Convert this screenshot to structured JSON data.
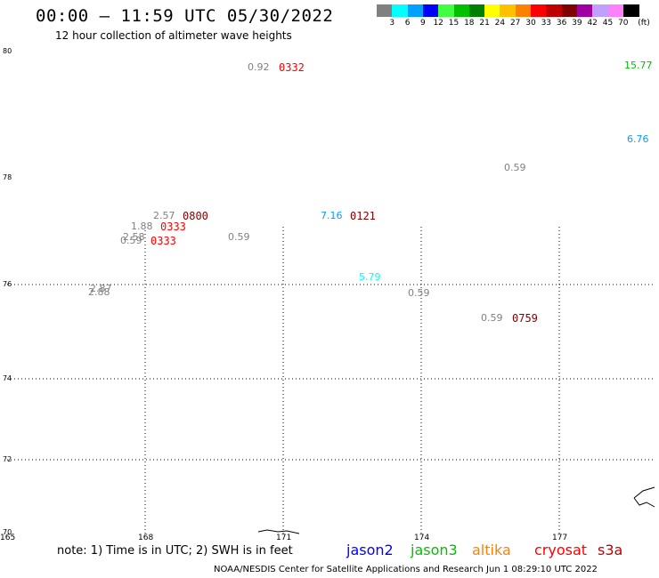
{
  "header": {
    "title": "00:00 – 11:59 UTC 05/30/2022",
    "subtitle": "12 hour collection of altimeter wave heights"
  },
  "colorbar": {
    "unit_label": "(ft)",
    "entries": [
      {
        "label": "3",
        "color": "#808080"
      },
      {
        "label": "6",
        "color": "#00ffff"
      },
      {
        "label": "9",
        "color": "#00a0ff"
      },
      {
        "label": "12",
        "color": "#0000ff"
      },
      {
        "label": "15",
        "color": "#40ff40"
      },
      {
        "label": "18",
        "color": "#00c000"
      },
      {
        "label": "21",
        "color": "#008000"
      },
      {
        "label": "24",
        "color": "#ffff00"
      },
      {
        "label": "27",
        "color": "#ffc000"
      },
      {
        "label": "30",
        "color": "#ff8000"
      },
      {
        "label": "33",
        "color": "#ff0000"
      },
      {
        "label": "36",
        "color": "#c00000"
      },
      {
        "label": "39",
        "color": "#800000"
      },
      {
        "label": "42",
        "color": "#a000a0"
      },
      {
        "label": "45",
        "color": "#c0a0ff"
      },
      {
        "label": "70",
        "color": "#ff80ff"
      },
      {
        "label": "",
        "color": "#000000"
      }
    ]
  },
  "axes": {
    "lat_labels": [
      "80",
      "78",
      "76",
      "74",
      "72",
      "70"
    ],
    "lon_labels": [
      "165",
      "168",
      "171",
      "174",
      "177"
    ]
  },
  "observations": [
    {
      "text": "0.92",
      "color": "#808080"
    },
    {
      "text": "0332",
      "color": "#ff0000"
    },
    {
      "text": "15.77",
      "color": "#00c000"
    },
    {
      "text": "6.76",
      "color": "#00a0ff"
    },
    {
      "text": "0.59",
      "color": "#808080"
    },
    {
      "text": "2.57",
      "color": "#808080"
    },
    {
      "text": "0800",
      "color": "#800000"
    },
    {
      "text": "7.16",
      "color": "#00a0ff"
    },
    {
      "text": "0121",
      "color": "#800000"
    },
    {
      "text": "1.88",
      "color": "#808080"
    },
    {
      "text": "0333",
      "color": "#ff0000"
    },
    {
      "text": "2.58",
      "color": "#808080"
    },
    {
      "text": "0.59",
      "color": "#808080"
    },
    {
      "text": "0333",
      "color": "#ff0000"
    },
    {
      "text": "0.59",
      "color": "#808080"
    },
    {
      "text": "5.79",
      "color": "#00ffff"
    },
    {
      "text": "2.87",
      "color": "#808080"
    },
    {
      "text": "2.88",
      "color": "#808080"
    },
    {
      "text": "0.59",
      "color": "#808080"
    },
    {
      "text": "0.59",
      "color": "#808080"
    },
    {
      "text": "0759",
      "color": "#800000"
    }
  ],
  "footer": {
    "note": "note: 1) Time is in UTC; 2) SWH is in feet",
    "satellites": [
      {
        "name": "jason2",
        "color": "#0000ff"
      },
      {
        "name": "jason3",
        "color": "#00c000"
      },
      {
        "name": "altika",
        "color": "#ff8000"
      },
      {
        "name": "cryosat",
        "color": "#ff0000"
      },
      {
        "name": "s3a",
        "color": "#c00000"
      }
    ],
    "credit": "NOAA/NESDIS Center for Satellite Applications and Research   Jun  1 08:29:10 UTC 2022"
  }
}
